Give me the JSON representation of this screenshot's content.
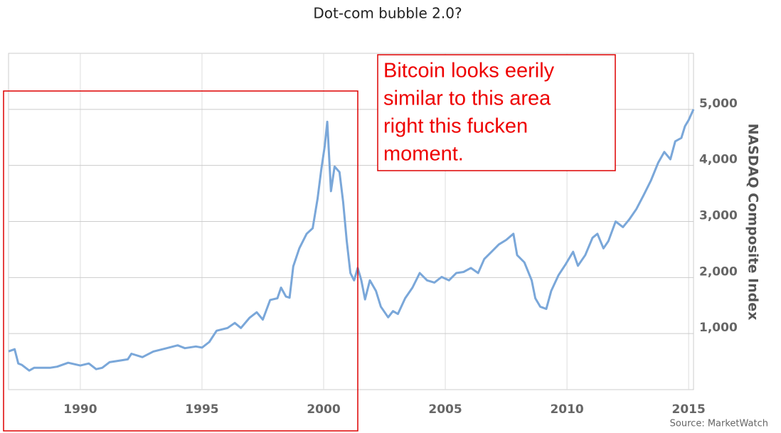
{
  "chart_data": {
    "type": "line",
    "title": "Dot-com bubble 2.0?",
    "y_label": "NASDAQ Composite Index",
    "source": "Source: MarketWatch",
    "annotation": [
      "Bitcoin looks eerily",
      "similar to this area",
      "right this fucken",
      "moment."
    ],
    "color": "#7aa7d9",
    "grid": true,
    "y_axis_side": "right",
    "xlim": [
      1987.05,
      2015.2
    ],
    "xticks": [
      1990,
      1995,
      2000,
      2005,
      2010,
      2015
    ],
    "ylim": [
      0,
      6000
    ],
    "yticks": [
      {
        "value": 1000,
        "label": "1,000"
      },
      {
        "value": 2000,
        "label": "2,000"
      },
      {
        "value": 3000,
        "label": "3,000"
      },
      {
        "value": 4000,
        "label": "4,000"
      },
      {
        "value": 5000,
        "label": "5,000"
      }
    ],
    "x": [
      1987.05,
      1987.3,
      1987.45,
      1987.6,
      1987.9,
      1988.1,
      1988.45,
      1988.75,
      1989.05,
      1989.5,
      1990,
      1990.35,
      1990.65,
      1990.9,
      1991.2,
      1991.65,
      1991.95,
      1992.1,
      1992.55,
      1993,
      1993.55,
      1994,
      1994.3,
      1994.75,
      1995,
      1995.3,
      1995.6,
      1996.05,
      1996.35,
      1996.6,
      1996.95,
      1997.25,
      1997.5,
      1997.8,
      1998.1,
      1998.25,
      1998.45,
      1998.6,
      1998.75,
      1999,
      1999.3,
      1999.55,
      1999.75,
      1999.9,
      2000.05,
      2000.15,
      2000.3,
      2000.45,
      2000.65,
      2000.8,
      2000.95,
      2001.1,
      2001.25,
      2001.4,
      2001.55,
      2001.7,
      2001.9,
      2002.15,
      2002.35,
      2002.65,
      2002.85,
      2003.05,
      2003.35,
      2003.65,
      2003.95,
      2004.25,
      2004.55,
      2004.85,
      2005.15,
      2005.45,
      2005.75,
      2006.05,
      2006.35,
      2006.6,
      2006.9,
      2007.2,
      2007.5,
      2007.8,
      2007.95,
      2008.25,
      2008.55,
      2008.7,
      2008.9,
      2009.15,
      2009.35,
      2009.65,
      2009.95,
      2010.25,
      2010.45,
      2010.75,
      2011.05,
      2011.25,
      2011.5,
      2011.7,
      2012,
      2012.3,
      2012.55,
      2012.85,
      2013.15,
      2013.45,
      2013.75,
      2014,
      2014.25,
      2014.45,
      2014.7,
      2014.85,
      2015,
      2015.2
    ],
    "values": [
      683,
      720,
      467,
      440,
      340,
      390,
      390,
      390,
      410,
      480,
      430,
      467,
      365,
      390,
      490,
      520,
      540,
      640,
      580,
      680,
      740,
      790,
      740,
      770,
      750,
      850,
      1050,
      1100,
      1190,
      1100,
      1280,
      1380,
      1250,
      1600,
      1630,
      1820,
      1660,
      1640,
      2200,
      2520,
      2780,
      2880,
      3410,
      3920,
      4360,
      4780,
      3540,
      3980,
      3880,
      3350,
      2650,
      2080,
      1950,
      2170,
      1950,
      1610,
      1950,
      1760,
      1480,
      1290,
      1400,
      1350,
      1630,
      1820,
      2080,
      1950,
      1910,
      2010,
      1950,
      2080,
      2100,
      2170,
      2080,
      2330,
      2460,
      2590,
      2670,
      2780,
      2400,
      2270,
      1950,
      1630,
      1480,
      1440,
      1760,
      2040,
      2240,
      2460,
      2210,
      2400,
      2710,
      2780,
      2520,
      2650,
      3000,
      2900,
      3030,
      3220,
      3470,
      3730,
      4050,
      4240,
      4110,
      4430,
      4490,
      4700,
      4810,
      5000
    ]
  }
}
